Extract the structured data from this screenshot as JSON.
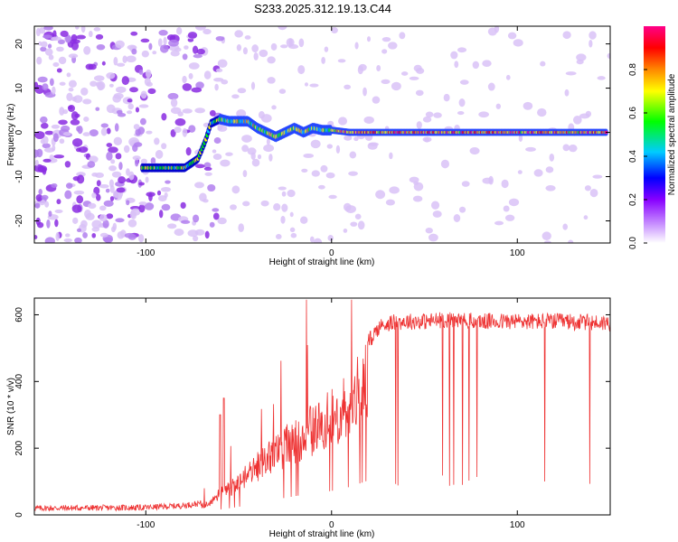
{
  "title": "S233.2025.312.19.13.C44",
  "chart_data": [
    {
      "type": "heatmap",
      "name": "spectrogram",
      "xlabel": "Height of straight line (km)",
      "ylabel": "Frequency (Hz)",
      "xlim": [
        -160,
        150
      ],
      "ylim": [
        -25,
        24
      ],
      "xticks": [
        -100,
        0,
        100
      ],
      "yticks": [
        -20,
        -10,
        0,
        10,
        20
      ],
      "ridge": {
        "x": [
          -102,
          -95,
          -85,
          -79,
          -72,
          -68,
          -65,
          -60,
          -55,
          -50,
          -45,
          -40,
          -35,
          -30,
          -25,
          -20,
          -15,
          -10,
          -5,
          0,
          10,
          30,
          60,
          90,
          120,
          148
        ],
        "y": [
          -8,
          -8,
          -8,
          -8,
          -6,
          -2,
          2,
          3,
          2.5,
          2.5,
          2.5,
          1,
          0,
          -1,
          0,
          1,
          0,
          1,
          0.5,
          0.5,
          0,
          0,
          0,
          0,
          0,
          0
        ]
      },
      "colorbar": {
        "label": "Normalized spectral amplitude",
        "range": [
          0,
          1
        ],
        "ticks": [
          0.0,
          0.2,
          0.4,
          0.6,
          0.8
        ],
        "tick_labels": [
          "0.0",
          "0.2",
          "0.4",
          "0.6",
          "0.8"
        ]
      },
      "colors": [
        "#ffffff",
        "#cc99ff",
        "#8800ff",
        "#0000ff",
        "#00ccff",
        "#00ff00",
        "#ffff00",
        "#ff8800",
        "#ff0000",
        "#ff0088"
      ]
    },
    {
      "type": "line",
      "name": "snr",
      "xlabel": "Height of straight line (km)",
      "ylabel": "SNR (10 * v/v)",
      "xlim": [
        -160,
        150
      ],
      "ylim": [
        0,
        650
      ],
      "xticks": [
        -100,
        0,
        100
      ],
      "yticks": [
        0,
        200,
        400,
        600
      ],
      "color": "#ee3333",
      "envelope": {
        "x": [
          -160,
          -100,
          -80,
          -70,
          -65,
          -60,
          -55,
          -50,
          -45,
          -40,
          -30,
          -20,
          -10,
          0,
          10,
          20,
          25,
          30,
          40,
          50,
          60,
          80,
          100,
          120,
          150
        ],
        "y": [
          20,
          22,
          28,
          35,
          45,
          80,
          100,
          120,
          150,
          180,
          230,
          280,
          320,
          360,
          420,
          520,
          560,
          575,
          580,
          580,
          585,
          580,
          580,
          580,
          575
        ]
      }
    }
  ]
}
